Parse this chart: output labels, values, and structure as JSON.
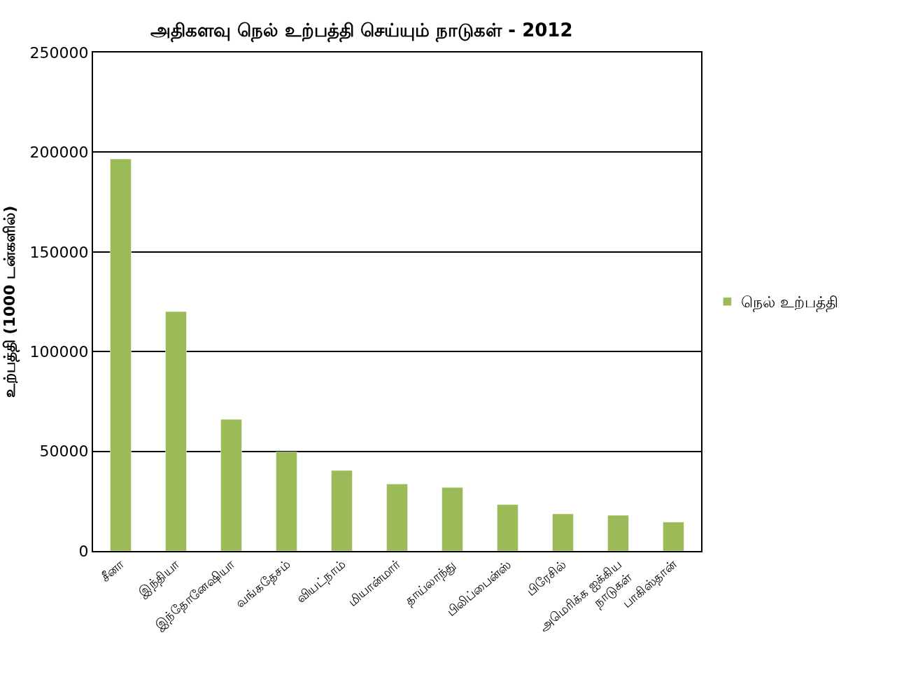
{
  "chart_data": {
    "type": "bar",
    "title": "அதிகளவு நெல் உற்பத்தி செய்யும் நாடுகள் - 2012",
    "ylabel": "உற்பத்தி (1000 டன்களில்)",
    "categories": [
      "சீனா",
      "இந்தியா",
      "இந்தோனேஷியா",
      "வங்கதேசம்",
      "வியட்நாம்",
      "மியான்மார்",
      "தாய்லாந்து",
      "பிலிப்பைன்ஸ்",
      "பிரேசில்",
      "அமெரிக்க ஐக்கிய\nநாடுகள்",
      "பாகிஸ்தான்"
    ],
    "series": [
      {
        "name": "நெல் உற்பத்தி",
        "color": "#9bbb59",
        "values": [
          196600,
          120100,
          66000,
          49700,
          40400,
          33600,
          31900,
          23300,
          18600,
          17900,
          14500
        ]
      }
    ],
    "ylim": [
      0,
      250000
    ],
    "yticks": [
      0,
      50000,
      100000,
      150000,
      200000,
      250000
    ],
    "grid": "y",
    "legend": "right"
  }
}
